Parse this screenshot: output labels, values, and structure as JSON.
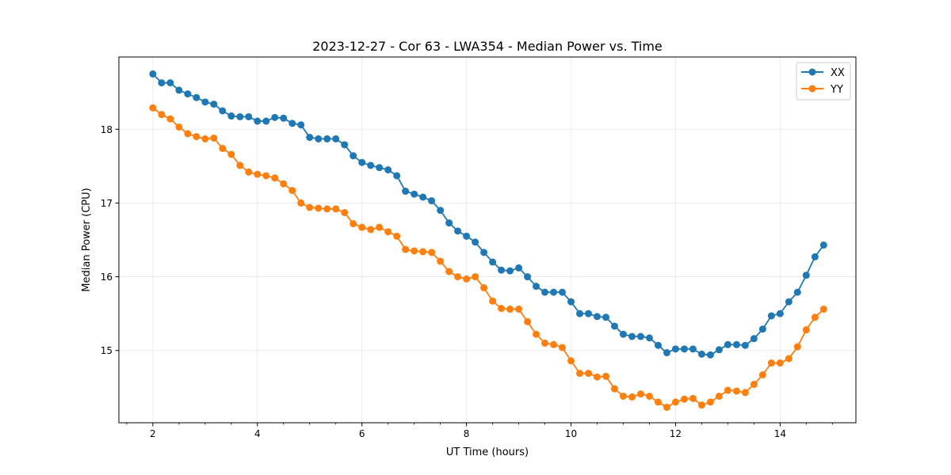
{
  "chart_data": {
    "type": "line",
    "title": "2023-12-27 - Cor 63 - LWA354 - Median Power vs. Time",
    "xlabel": "UT Time (hours)",
    "ylabel": "Median Power (CPU)",
    "xlim": [
      1.35,
      15.45
    ],
    "ylim": [
      14.02,
      18.98
    ],
    "xticks": [
      2,
      4,
      6,
      8,
      10,
      12,
      14
    ],
    "yticks": [
      15,
      16,
      17,
      18
    ],
    "grid": true,
    "legend_position": "top-right",
    "series": [
      {
        "name": "XX",
        "color": "#1f77b4",
        "x": [
          2.0,
          2.167,
          2.333,
          2.5,
          2.667,
          2.833,
          3.0,
          3.167,
          3.333,
          3.5,
          3.667,
          3.833,
          4.0,
          4.167,
          4.333,
          4.5,
          4.667,
          4.833,
          5.0,
          5.167,
          5.333,
          5.5,
          5.667,
          5.833,
          6.0,
          6.167,
          6.333,
          6.5,
          6.667,
          6.833,
          7.0,
          7.167,
          7.333,
          7.5,
          7.667,
          7.833,
          8.0,
          8.167,
          8.333,
          8.5,
          8.667,
          8.833,
          9.0,
          9.167,
          9.333,
          9.5,
          9.667,
          9.833,
          10.0,
          10.167,
          10.333,
          10.5,
          10.667,
          10.833,
          11.0,
          11.167,
          11.333,
          11.5,
          11.667,
          11.833,
          12.0,
          12.167,
          12.333,
          12.5,
          12.667,
          12.833,
          13.0,
          13.167,
          13.333,
          13.5,
          13.667,
          13.833,
          14.0,
          14.167,
          14.333,
          14.5,
          14.667,
          14.833
        ],
        "values": [
          18.75,
          18.63,
          18.63,
          18.53,
          18.48,
          18.43,
          18.37,
          18.34,
          18.25,
          18.18,
          18.17,
          18.17,
          18.11,
          18.11,
          18.16,
          18.15,
          18.08,
          18.06,
          17.89,
          17.87,
          17.87,
          17.87,
          17.79,
          17.64,
          17.55,
          17.51,
          17.48,
          17.45,
          17.37,
          17.16,
          17.12,
          17.08,
          17.03,
          16.9,
          16.73,
          16.62,
          16.55,
          16.47,
          16.33,
          16.2,
          16.09,
          16.08,
          16.12,
          16.0,
          15.87,
          15.79,
          15.79,
          15.79,
          15.66,
          15.5,
          15.5,
          15.46,
          15.45,
          15.33,
          15.22,
          15.19,
          15.19,
          15.17,
          15.07,
          14.97,
          15.02,
          15.02,
          15.02,
          14.95,
          14.94,
          15.01,
          15.08,
          15.08,
          15.07,
          15.16,
          15.29,
          15.47,
          15.5,
          15.66,
          15.79,
          16.02,
          16.27,
          16.43
        ]
      },
      {
        "name": "YY",
        "color": "#ff7f0e",
        "x": [
          2.0,
          2.167,
          2.333,
          2.5,
          2.667,
          2.833,
          3.0,
          3.167,
          3.333,
          3.5,
          3.667,
          3.833,
          4.0,
          4.167,
          4.333,
          4.5,
          4.667,
          4.833,
          5.0,
          5.167,
          5.333,
          5.5,
          5.667,
          5.833,
          6.0,
          6.167,
          6.333,
          6.5,
          6.667,
          6.833,
          7.0,
          7.167,
          7.333,
          7.5,
          7.667,
          7.833,
          8.0,
          8.167,
          8.333,
          8.5,
          8.667,
          8.833,
          9.0,
          9.167,
          9.333,
          9.5,
          9.667,
          9.833,
          10.0,
          10.167,
          10.333,
          10.5,
          10.667,
          10.833,
          11.0,
          11.167,
          11.333,
          11.5,
          11.667,
          11.833,
          12.0,
          12.167,
          12.333,
          12.5,
          12.667,
          12.833,
          13.0,
          13.167,
          13.333,
          13.5,
          13.667,
          13.833,
          14.0,
          14.167,
          14.333,
          14.5,
          14.667,
          14.833
        ],
        "values": [
          18.29,
          18.2,
          18.14,
          18.03,
          17.94,
          17.9,
          17.87,
          17.88,
          17.74,
          17.66,
          17.51,
          17.42,
          17.39,
          17.37,
          17.34,
          17.26,
          17.17,
          17.0,
          16.94,
          16.93,
          16.92,
          16.92,
          16.87,
          16.72,
          16.67,
          16.64,
          16.67,
          16.61,
          16.55,
          16.37,
          16.35,
          16.34,
          16.33,
          16.21,
          16.07,
          16.0,
          15.97,
          16.0,
          15.85,
          15.67,
          15.57,
          15.56,
          15.56,
          15.39,
          15.22,
          15.1,
          15.08,
          15.04,
          14.86,
          14.69,
          14.69,
          14.64,
          14.65,
          14.48,
          14.38,
          14.37,
          14.41,
          14.38,
          14.3,
          14.23,
          14.3,
          14.34,
          14.35,
          14.26,
          14.3,
          14.38,
          14.46,
          14.45,
          14.43,
          14.54,
          14.67,
          14.83,
          14.83,
          14.89,
          15.05,
          15.28,
          15.45,
          15.56
        ]
      }
    ]
  }
}
